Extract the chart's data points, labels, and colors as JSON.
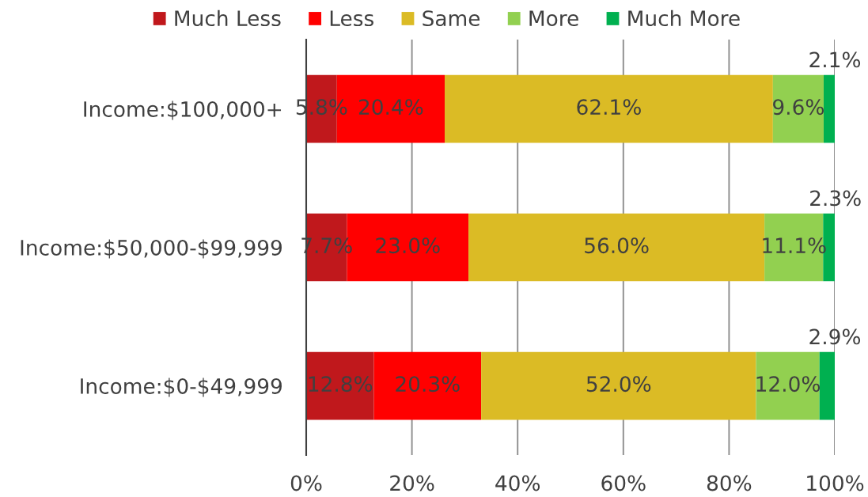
{
  "chart_data": {
    "type": "bar",
    "orientation": "horizontal",
    "stacked": true,
    "categories": [
      "Income:$100,000+",
      "Income:$50,000-$99,999",
      "Income:$0-$49,999"
    ],
    "series": [
      {
        "name": "Much Less",
        "color": "#c0181c",
        "values": [
          5.8,
          7.7,
          12.8
        ],
        "value_labels": [
          "5.8%",
          "7.7%",
          "12.8%"
        ]
      },
      {
        "name": "Less",
        "color": "#ff0000",
        "values": [
          20.4,
          23.0,
          20.3
        ],
        "value_labels": [
          "20.4%",
          "23.0%",
          "20.3%"
        ]
      },
      {
        "name": "Same",
        "color": "#dbbb25",
        "values": [
          62.1,
          56.0,
          52.0
        ],
        "value_labels": [
          "62.1%",
          "56.0%",
          "52.0%"
        ]
      },
      {
        "name": "More",
        "color": "#92d050",
        "values": [
          9.6,
          11.1,
          12.0
        ],
        "value_labels": [
          "9.6%",
          "11.1%",
          "12.0%"
        ]
      },
      {
        "name": "Much More",
        "color": "#00b050",
        "values": [
          2.1,
          2.3,
          2.9
        ],
        "value_labels": [
          "2.1%",
          "2.3%",
          "2.9%"
        ]
      }
    ],
    "xlim": [
      0,
      100
    ],
    "xticks": [
      {
        "value": 0,
        "label": "0%"
      },
      {
        "value": 20,
        "label": "20%"
      },
      {
        "value": 40,
        "label": "40%"
      },
      {
        "value": 60,
        "label": "60%"
      },
      {
        "value": 80,
        "label": "80%"
      },
      {
        "value": 100,
        "label": "100%"
      }
    ],
    "grid": "x",
    "legend": "top"
  }
}
